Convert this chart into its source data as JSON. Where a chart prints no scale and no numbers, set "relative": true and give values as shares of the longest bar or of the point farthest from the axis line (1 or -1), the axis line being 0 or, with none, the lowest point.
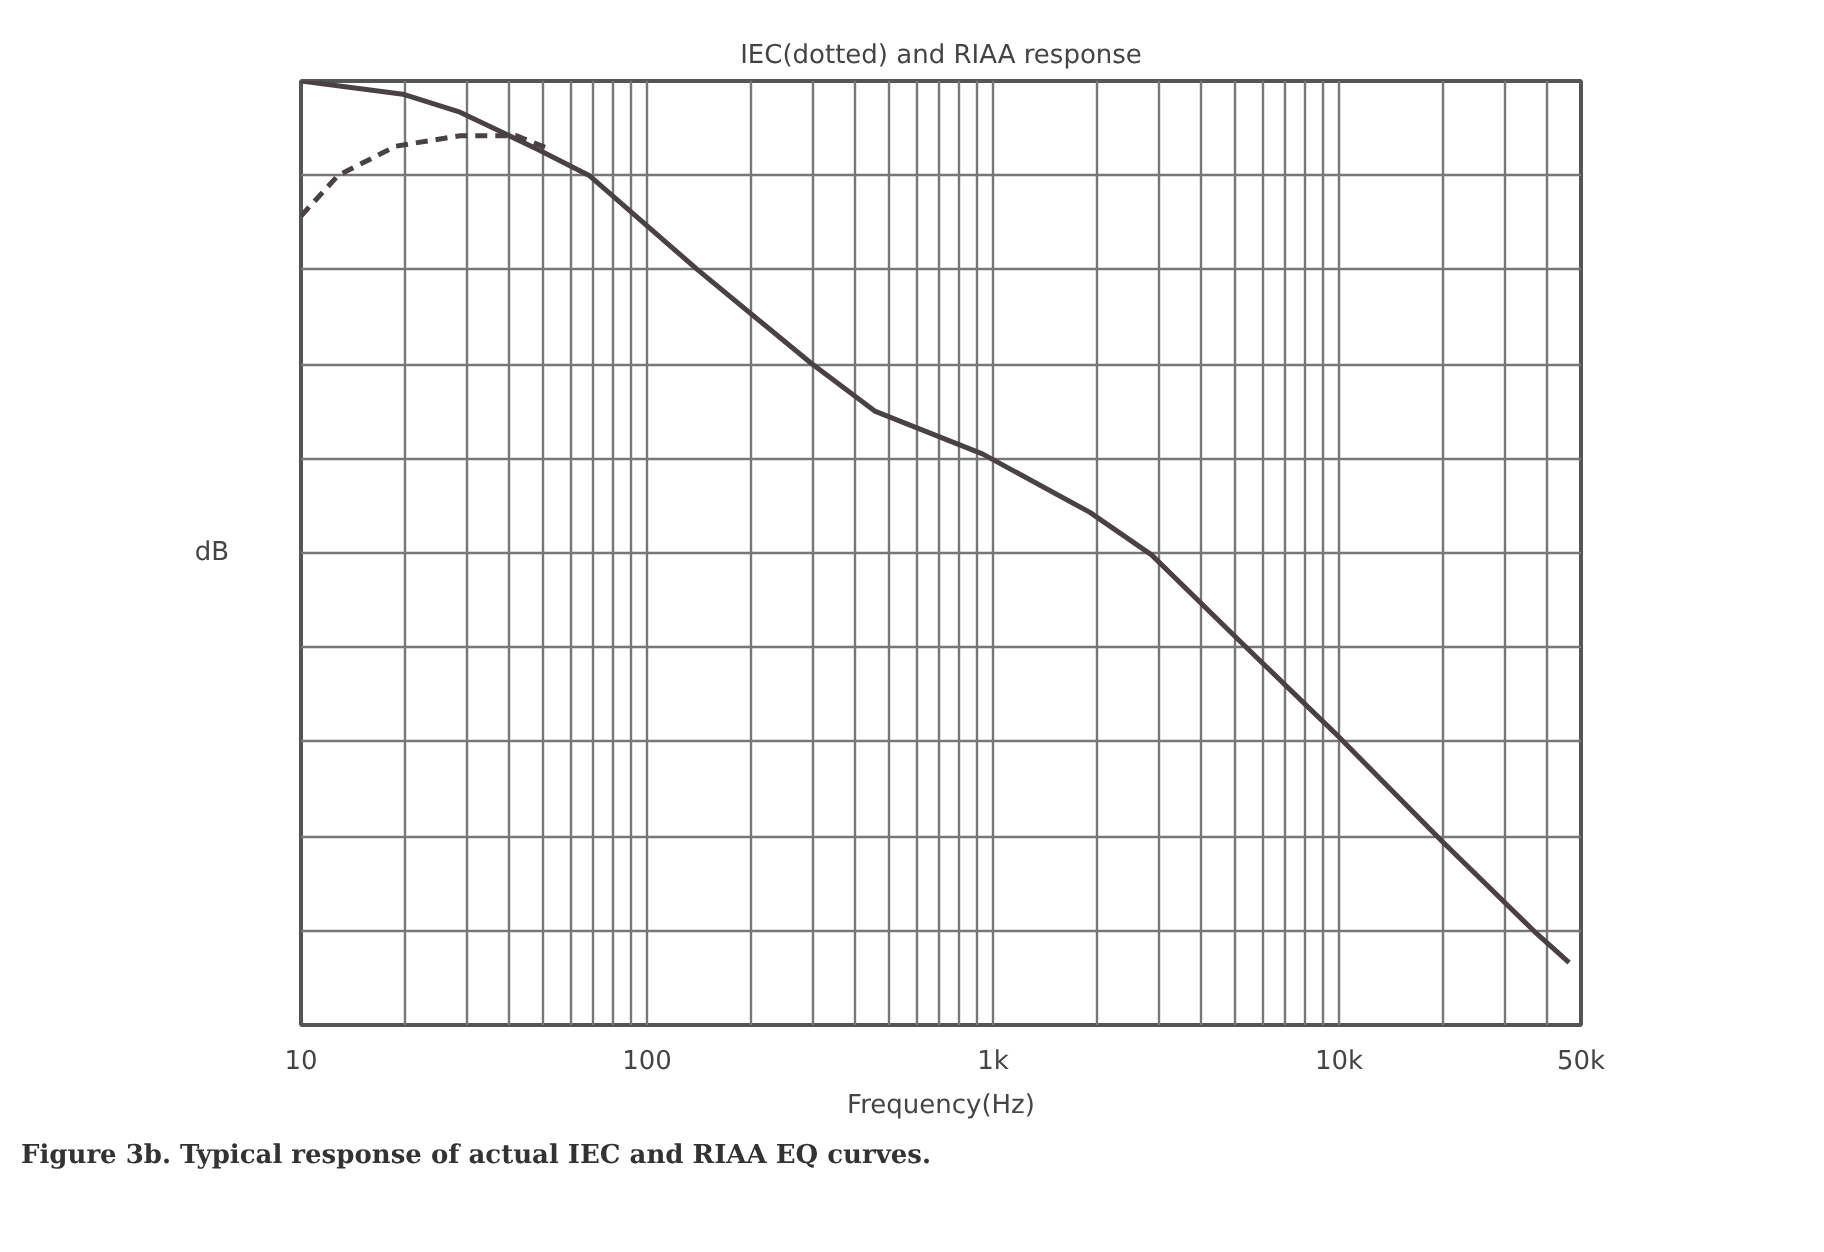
{
  "chart_data": {
    "type": "line",
    "title": "IEC(dotted) and RIAA response",
    "xlabel": "Frequency(Hz)",
    "ylabel": "dB",
    "annotations": [
      "Figure 3b. Typical response of actual IEC and RIAA EQ curves."
    ],
    "relative": true,
    "log": "x",
    "xlim": [
      10,
      50000
    ],
    "xticks": [
      {
        "value": 10,
        "label": "10"
      },
      {
        "value": 100,
        "label": "100"
      },
      {
        "value": 1000,
        "label": "1k"
      },
      {
        "value": 10000,
        "label": "10k"
      },
      {
        "value": 50000,
        "label": "50k"
      }
    ],
    "grid": true,
    "marker": "none",
    "series": [
      {
        "color": "#4a4242",
        "line_style": "solid",
        "x": [
          10,
          19.7,
          28.8,
          48.7,
          68,
          139,
          298,
          457,
          931,
          1905,
          2870,
          5460,
          9680,
          19800,
          36700,
          46200
        ],
        "values": [
          1.0,
          0.986,
          0.967,
          0.927,
          0.9,
          0.801,
          0.701,
          0.65,
          0.605,
          0.543,
          0.498,
          0.398,
          0.31,
          0.195,
          0.099,
          0.066
        ]
      },
      {
        "color": "#4a4242",
        "line_style": "dashed",
        "x": [
          10,
          12.8,
          18.8,
          28.8,
          42,
          53
        ],
        "values": [
          0.857,
          0.9,
          0.931,
          0.942,
          0.942,
          0.927
        ]
      }
    ]
  }
}
